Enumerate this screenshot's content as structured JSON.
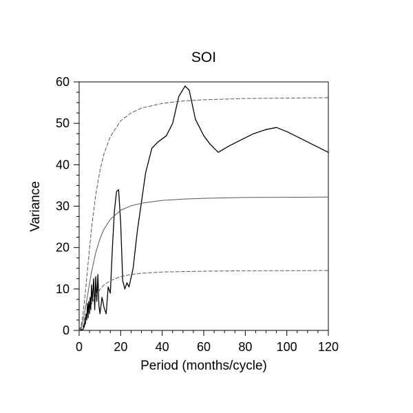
{
  "chart_data": {
    "type": "line",
    "title": "SOI",
    "xlabel": "Period (months/cycle)",
    "ylabel": "Variance",
    "xlim": [
      0,
      120
    ],
    "ylim": [
      0,
      60
    ],
    "x_tick_interval": 20,
    "x_minor_interval": 5,
    "y_tick_interval": 10,
    "y_minor_interval": 2.5,
    "x_ticks": [
      0,
      20,
      40,
      60,
      80,
      100,
      120
    ],
    "y_ticks": [
      0,
      10,
      20,
      30,
      40,
      50,
      60
    ],
    "grid": false,
    "legend": "none",
    "series": [
      {
        "name": "spectrum",
        "style": "solid",
        "color": "#000000",
        "width": 1.3,
        "x": [
          0.5,
          2,
          2.2,
          2.5,
          2.8,
          3,
          3.3,
          3.6,
          4,
          4.3,
          4.6,
          5,
          5.3,
          5.6,
          6,
          6.4,
          7,
          7.5,
          8,
          8.5,
          9,
          9.5,
          10,
          11,
          12,
          13,
          14,
          15,
          16,
          17,
          18,
          19,
          20,
          21,
          22,
          23,
          24,
          26,
          28,
          30,
          32,
          35,
          38,
          42,
          45,
          48,
          51,
          53,
          56,
          60,
          63,
          67,
          72,
          78,
          84,
          90,
          95,
          100,
          106,
          112,
          120
        ],
        "y": [
          0,
          0.3,
          1.5,
          0.8,
          3,
          1.5,
          4,
          2.5,
          6.5,
          3,
          7,
          4,
          8,
          5,
          11,
          7,
          12.5,
          5,
          13,
          7,
          13.5,
          6,
          4,
          8,
          5.5,
          4,
          10.5,
          9,
          20,
          29,
          33.5,
          34,
          26,
          12,
          10,
          11.5,
          10.5,
          15,
          24,
          31,
          38,
          44,
          45.5,
          47,
          50,
          56.5,
          59,
          58,
          51,
          47,
          45,
          43,
          44.5,
          46,
          47.5,
          48.5,
          49,
          48,
          46.5,
          45,
          43
        ]
      },
      {
        "name": "red-noise-background",
        "style": "solid",
        "color": "#555555",
        "width": 1,
        "x": [
          0,
          1,
          2,
          3,
          4,
          5,
          6,
          8,
          10,
          12,
          15,
          20,
          25,
          30,
          40,
          50,
          60,
          80,
          100,
          120
        ],
        "y": [
          0,
          0.7,
          2.6,
          5.3,
          8.3,
          11.4,
          14.2,
          18.8,
          22.1,
          24.5,
          26.8,
          29.0,
          30.1,
          30.7,
          31.4,
          31.7,
          31.9,
          32.1,
          32.15,
          32.2
        ]
      },
      {
        "name": "upper-confidence-bound",
        "style": "dashed",
        "color": "#555555",
        "width": 1,
        "x": [
          0,
          1,
          2,
          3,
          4,
          5,
          6,
          8,
          10,
          12,
          15,
          20,
          25,
          30,
          40,
          50,
          60,
          80,
          100,
          120
        ],
        "y": [
          0,
          1.2,
          4.5,
          9.2,
          14.6,
          19.9,
          24.8,
          32.8,
          38.6,
          42.7,
          46.8,
          50.6,
          52.5,
          53.7,
          54.8,
          55.4,
          55.7,
          56.0,
          56.1,
          56.2
        ]
      },
      {
        "name": "lower-confidence-bound",
        "style": "dashed",
        "color": "#555555",
        "width": 1,
        "x": [
          0,
          1,
          2,
          3,
          4,
          5,
          6,
          8,
          10,
          12,
          15,
          20,
          25,
          30,
          40,
          50,
          60,
          80,
          100,
          120
        ],
        "y": [
          0,
          0.3,
          1.2,
          2.4,
          3.7,
          5.1,
          6.4,
          8.4,
          9.9,
          11.0,
          12.0,
          13.0,
          13.5,
          13.8,
          14.1,
          14.2,
          14.3,
          14.4,
          14.43,
          14.46
        ]
      }
    ]
  },
  "colors": {
    "frame": "#000000",
    "background": "#ffffff",
    "tick": "#000000"
  }
}
